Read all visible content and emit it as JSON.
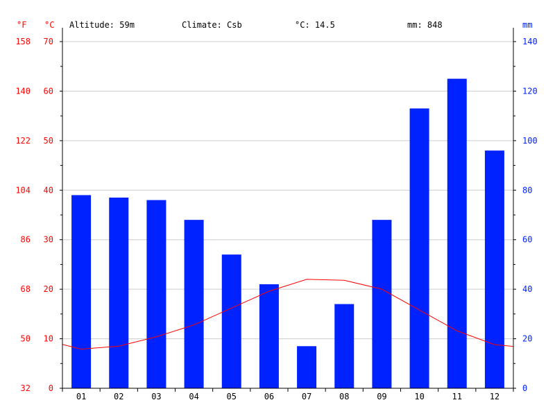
{
  "header": {
    "altitude": "Altitude: 59m",
    "climate": "Climate: Csb",
    "mean_temp": "°C: 14.5",
    "annual_precip": "mm: 848"
  },
  "axes": {
    "left_f_unit": "°F",
    "left_c_unit": "°C",
    "right_mm_unit": "mm",
    "f_ticks": [
      "158",
      "140",
      "122",
      "104",
      "86",
      "68",
      "50",
      "32"
    ],
    "c_ticks": [
      "70",
      "60",
      "50",
      "40",
      "30",
      "20",
      "10",
      "0"
    ],
    "mm_ticks": [
      "140",
      "120",
      "100",
      "80",
      "60",
      "40",
      "20",
      "0"
    ]
  },
  "colors": {
    "temperature": "#ff0000",
    "precipitation": "#0022ff",
    "precip_axis": "#0022ff",
    "grid": "#cccccc",
    "axis": "#000000"
  },
  "chart_data": {
    "type": "bar",
    "categories": [
      "01",
      "02",
      "03",
      "04",
      "05",
      "06",
      "07",
      "08",
      "09",
      "10",
      "11",
      "12"
    ],
    "series": [
      {
        "type": "bar",
        "unit": "mm",
        "axis": "right",
        "values": [
          78,
          77,
          76,
          68,
          54,
          42,
          17,
          34,
          68,
          113,
          125,
          96
        ]
      },
      {
        "type": "line",
        "unit": "°C",
        "axis": "left",
        "values": [
          7.9,
          8.5,
          10.4,
          12.8,
          16.2,
          19.6,
          22.0,
          21.8,
          20.0,
          15.8,
          11.6,
          8.8
        ]
      }
    ],
    "ylim_left_c": [
      0,
      70
    ],
    "ylim_left_f": [
      32,
      158
    ],
    "ylim_right_mm": [
      0,
      140
    ],
    "grid": true
  }
}
